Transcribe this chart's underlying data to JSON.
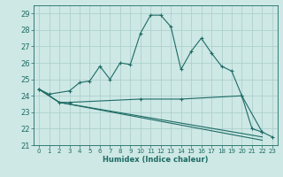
{
  "title": "",
  "xlabel": "Humidex (Indice chaleur)",
  "xlim": [
    -0.5,
    23.5
  ],
  "ylim": [
    21,
    29.5
  ],
  "yticks": [
    21,
    22,
    23,
    24,
    25,
    26,
    27,
    28,
    29
  ],
  "xticks": [
    0,
    1,
    2,
    3,
    4,
    5,
    6,
    7,
    8,
    9,
    10,
    11,
    12,
    13,
    14,
    15,
    16,
    17,
    18,
    19,
    20,
    21,
    22,
    23
  ],
  "bg_color": "#cde8e5",
  "grid_color": "#a8ccca",
  "line_color": "#1e6b65",
  "curve1_x": [
    0,
    1,
    3,
    4,
    5,
    6,
    7,
    8,
    9,
    10,
    11,
    12,
    13,
    14,
    15,
    16,
    17,
    18,
    19,
    20,
    21,
    22,
    23
  ],
  "curve1_y": [
    24.4,
    24.1,
    24.3,
    24.8,
    24.9,
    25.8,
    25.0,
    26.0,
    25.9,
    27.8,
    28.9,
    28.9,
    28.2,
    25.6,
    26.7,
    27.5,
    26.6,
    25.8,
    25.5,
    24.0,
    22.0,
    21.8,
    21.5
  ],
  "curve2_x": [
    0,
    2,
    3,
    10,
    14,
    20,
    22
  ],
  "curve2_y": [
    24.4,
    23.6,
    23.6,
    23.8,
    23.8,
    24.0,
    21.8
  ],
  "curve3_x": [
    0,
    2,
    22
  ],
  "curve3_y": [
    24.4,
    23.6,
    21.5
  ],
  "curve4_x": [
    0,
    2,
    22
  ],
  "curve4_y": [
    24.4,
    23.6,
    21.3
  ],
  "lw": 0.8,
  "ms": 2.5,
  "xlabel_fontsize": 6,
  "tick_fontsize": 5
}
